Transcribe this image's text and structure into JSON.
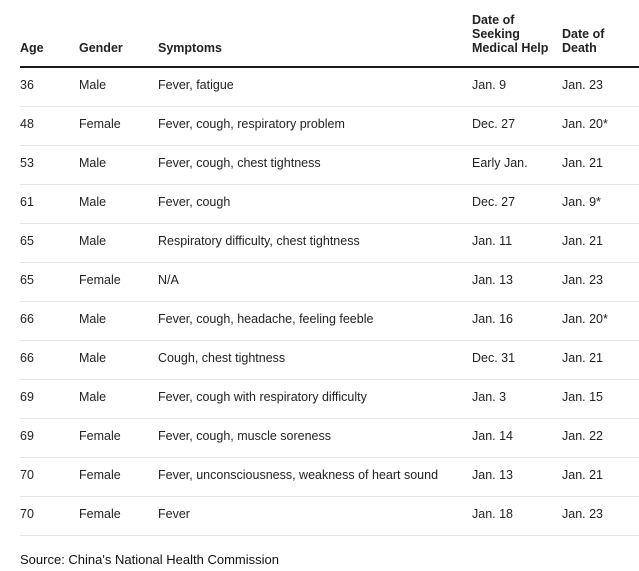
{
  "columns": [
    "Age",
    "Gender",
    "Symptoms",
    "Date of Seeking Medical Help",
    "Date of Death"
  ],
  "rows": [
    [
      "36",
      "Male",
      "Fever, fatigue",
      "Jan. 9",
      "Jan. 23"
    ],
    [
      "48",
      "Female",
      "Fever, cough, respiratory problem",
      "Dec. 27",
      "Jan. 20*"
    ],
    [
      "53",
      "Male",
      "Fever, cough, chest tightness",
      "Early Jan.",
      "Jan. 21"
    ],
    [
      "61",
      "Male",
      "Fever, cough",
      "Dec. 27",
      "Jan. 9*"
    ],
    [
      "65",
      "Male",
      "Respiratory difficulty, chest tightness",
      "Jan. 11",
      "Jan. 21"
    ],
    [
      "65",
      "Female",
      "N/A",
      "Jan. 13",
      "Jan. 23"
    ],
    [
      "66",
      "Male",
      "Fever, cough, headache, feeling feeble",
      "Jan. 16",
      "Jan. 20*"
    ],
    [
      "66",
      "Male",
      "Cough, chest tightness",
      "Dec. 31",
      "Jan. 21"
    ],
    [
      "69",
      "Male",
      "Fever, cough with respiratory difficulty",
      "Jan. 3",
      "Jan. 15"
    ],
    [
      "69",
      "Female",
      "Fever, cough, muscle soreness",
      "Jan. 14",
      "Jan. 22"
    ],
    [
      "70",
      "Female",
      "Fever, unconsciousness, weakness of heart sound",
      "Jan. 13",
      "Jan. 21"
    ],
    [
      "70",
      "Female",
      "Fever",
      "Jan. 18",
      "Jan. 23"
    ]
  ],
  "source": "Source: China's National Health Commission"
}
